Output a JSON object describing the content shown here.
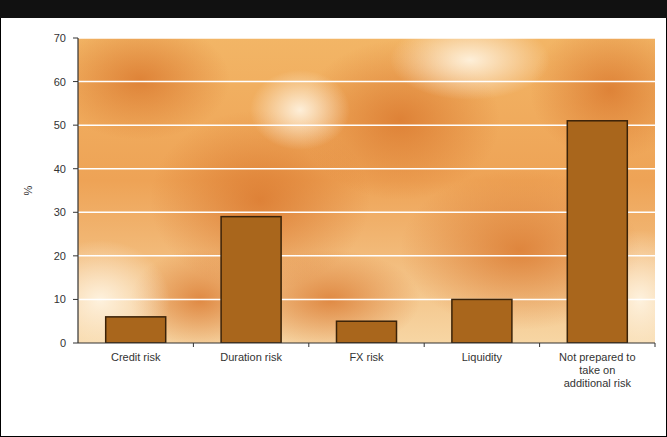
{
  "chart_data": {
    "type": "bar",
    "y_label": "%",
    "categories": [
      "Credit risk",
      "Duration risk",
      "FX risk",
      "Liquidity",
      "Not prepared to take on additional risk"
    ],
    "values": [
      6,
      29,
      5,
      10,
      51
    ],
    "color": "#a9661c",
    "ylim": [
      0,
      70
    ],
    "yticks": [
      0,
      10,
      20,
      30,
      40,
      50,
      60,
      70
    ],
    "grid": true
  }
}
